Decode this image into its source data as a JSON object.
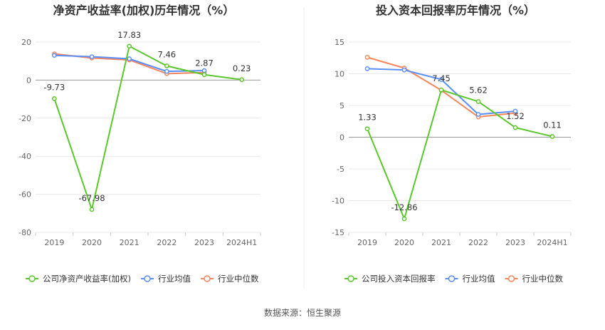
{
  "source_text": "数据来源：恒生聚源",
  "colors": {
    "company": "#5CC72C",
    "avg": "#5B8FF9",
    "median": "#F4865E"
  },
  "chart_data": [
    {
      "type": "line",
      "title": "净资产收益率(加权)历年情况（%）",
      "categories": [
        "2019",
        "2020",
        "2021",
        "2022",
        "2023",
        "2024H1"
      ],
      "yticks": [
        "20",
        "0",
        "-20",
        "-40",
        "-60",
        "-80"
      ],
      "ylim": [
        -80,
        20
      ],
      "series": [
        {
          "name": "公司净资产收益率(加权)",
          "key": "company",
          "values": [
            -9.73,
            -67.98,
            17.83,
            7.46,
            2.87,
            0.23
          ],
          "labels": [
            "-9.73",
            "-67.98",
            "17.83",
            "7.46",
            "2.87",
            "0.23"
          ]
        },
        {
          "name": "行业均值",
          "key": "avg",
          "values": [
            13.0,
            12.3,
            11.2,
            4.6,
            5.0,
            null
          ]
        },
        {
          "name": "行业中位数",
          "key": "median",
          "values": [
            13.8,
            11.6,
            10.6,
            3.4,
            4.0,
            null
          ]
        }
      ]
    },
    {
      "type": "line",
      "title": "投入资本回报率历年情况（%）",
      "categories": [
        "2019",
        "2020",
        "2021",
        "2022",
        "2023",
        "2024H1"
      ],
      "yticks": [
        "15",
        "10",
        "5",
        "0",
        "-5",
        "-10",
        "-15"
      ],
      "ylim": [
        -15,
        15
      ],
      "series": [
        {
          "name": "公司投入资本回报率",
          "key": "company",
          "values": [
            1.33,
            -12.86,
            7.45,
            5.62,
            1.52,
            0.11
          ],
          "labels": [
            "1.33",
            "-12.86",
            "7.45",
            "5.62",
            "1.52",
            "0.11"
          ]
        },
        {
          "name": "行业均值",
          "key": "avg",
          "values": [
            10.8,
            10.6,
            9.1,
            3.6,
            4.1,
            null
          ]
        },
        {
          "name": "行业中位数",
          "key": "median",
          "values": [
            12.6,
            10.9,
            7.4,
            3.2,
            3.8,
            null
          ]
        }
      ]
    }
  ]
}
